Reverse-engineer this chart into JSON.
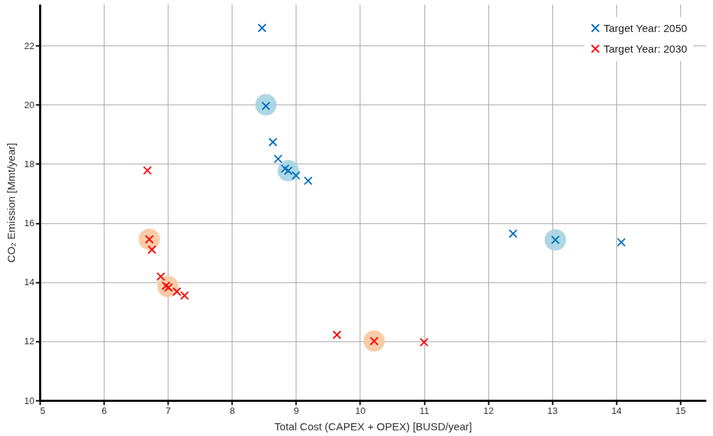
{
  "chart_data": {
    "type": "scatter",
    "xlabel": "Total Cost (CAPEX + OPEX) [BUSD/year]",
    "ylabel": "CO₂ Emission [Mmt/year]",
    "xlim": [
      5,
      15.4
    ],
    "ylim": [
      10,
      23.4
    ],
    "xticks": [
      5,
      6,
      7,
      8,
      9,
      10,
      11,
      12,
      13,
      14,
      15
    ],
    "yticks": [
      10,
      12,
      14,
      16,
      18,
      20,
      22
    ],
    "grid": true,
    "legend": "top right",
    "marker": "cross",
    "series": [
      {
        "color": "#a9d5e3",
        "marker": "circle",
        "x": [
          8.53,
          8.88,
          13.05
        ],
        "values": [
          20.0,
          17.77,
          15.43
        ]
      },
      {
        "color": "#f9c9a3",
        "marker": "circle",
        "x": [
          6.71,
          7.0,
          10.22
        ],
        "values": [
          15.45,
          13.85,
          12.01
        ]
      },
      {
        "name": "Target Year: 2050",
        "color": "#0070c0",
        "x": [
          8.47,
          8.53,
          8.64,
          8.72,
          8.83,
          8.88,
          9.0,
          9.19,
          12.39,
          13.05,
          14.08
        ],
        "values": [
          22.6,
          19.96,
          18.74,
          18.17,
          17.84,
          17.77,
          17.61,
          17.43,
          15.64,
          15.43,
          15.35
        ]
      },
      {
        "name": "Target Year: 2030",
        "color": "#ff0000",
        "x": [
          6.68,
          6.71,
          6.75,
          6.89,
          6.97,
          7.01,
          7.14,
          7.26,
          9.64,
          10.22,
          11.0
        ],
        "values": [
          17.78,
          15.45,
          15.1,
          14.19,
          13.88,
          13.82,
          13.68,
          13.55,
          12.22,
          12.01,
          11.97
        ]
      }
    ]
  }
}
